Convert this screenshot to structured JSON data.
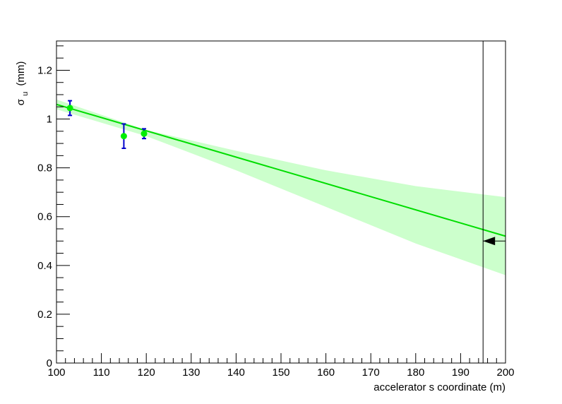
{
  "chart_data": {
    "type": "scatter",
    "title": "",
    "xlabel": "accelerator s coordinate (m)",
    "ylabel_main": "σ",
    "ylabel_sub": "u",
    "ylabel_unit": "(mm)",
    "xlim": [
      100,
      200
    ],
    "ylim": [
      0,
      1.32
    ],
    "x_ticks": [
      100,
      110,
      120,
      130,
      140,
      150,
      160,
      170,
      180,
      190,
      200
    ],
    "x_tick_labels": [
      "100",
      "110",
      "120",
      "130",
      "140",
      "150",
      "160",
      "170",
      "180",
      "190",
      "200"
    ],
    "y_ticks": [
      0,
      0.2,
      0.4,
      0.6,
      0.8,
      1.0,
      1.2
    ],
    "y_tick_labels": [
      "0",
      "0.2",
      "0.4",
      "0.6",
      "0.8",
      "1",
      "1.2"
    ],
    "grid": false,
    "points": [
      {
        "x": 103,
        "y": 1.045,
        "err": 0.03
      },
      {
        "x": 115,
        "y": 0.93,
        "err": 0.05
      },
      {
        "x": 119.5,
        "y": 0.94,
        "err": 0.02
      }
    ],
    "fit_line": {
      "x": [
        100,
        200
      ],
      "y": [
        1.06,
        0.52
      ]
    },
    "band": {
      "x": [
        100,
        120,
        140,
        160,
        180,
        200
      ],
      "upper": [
        1.08,
        0.955,
        0.87,
        0.79,
        0.725,
        0.68
      ],
      "lower": [
        1.04,
        0.93,
        0.79,
        0.64,
        0.49,
        0.36
      ]
    },
    "marker_x": 195,
    "arrow_y": 0.5,
    "colors": {
      "point": "#00ee00",
      "errorbar": "#0000cc",
      "fit_line": "#00dd00",
      "band": "#ccffcc",
      "axis": "#000000"
    }
  }
}
